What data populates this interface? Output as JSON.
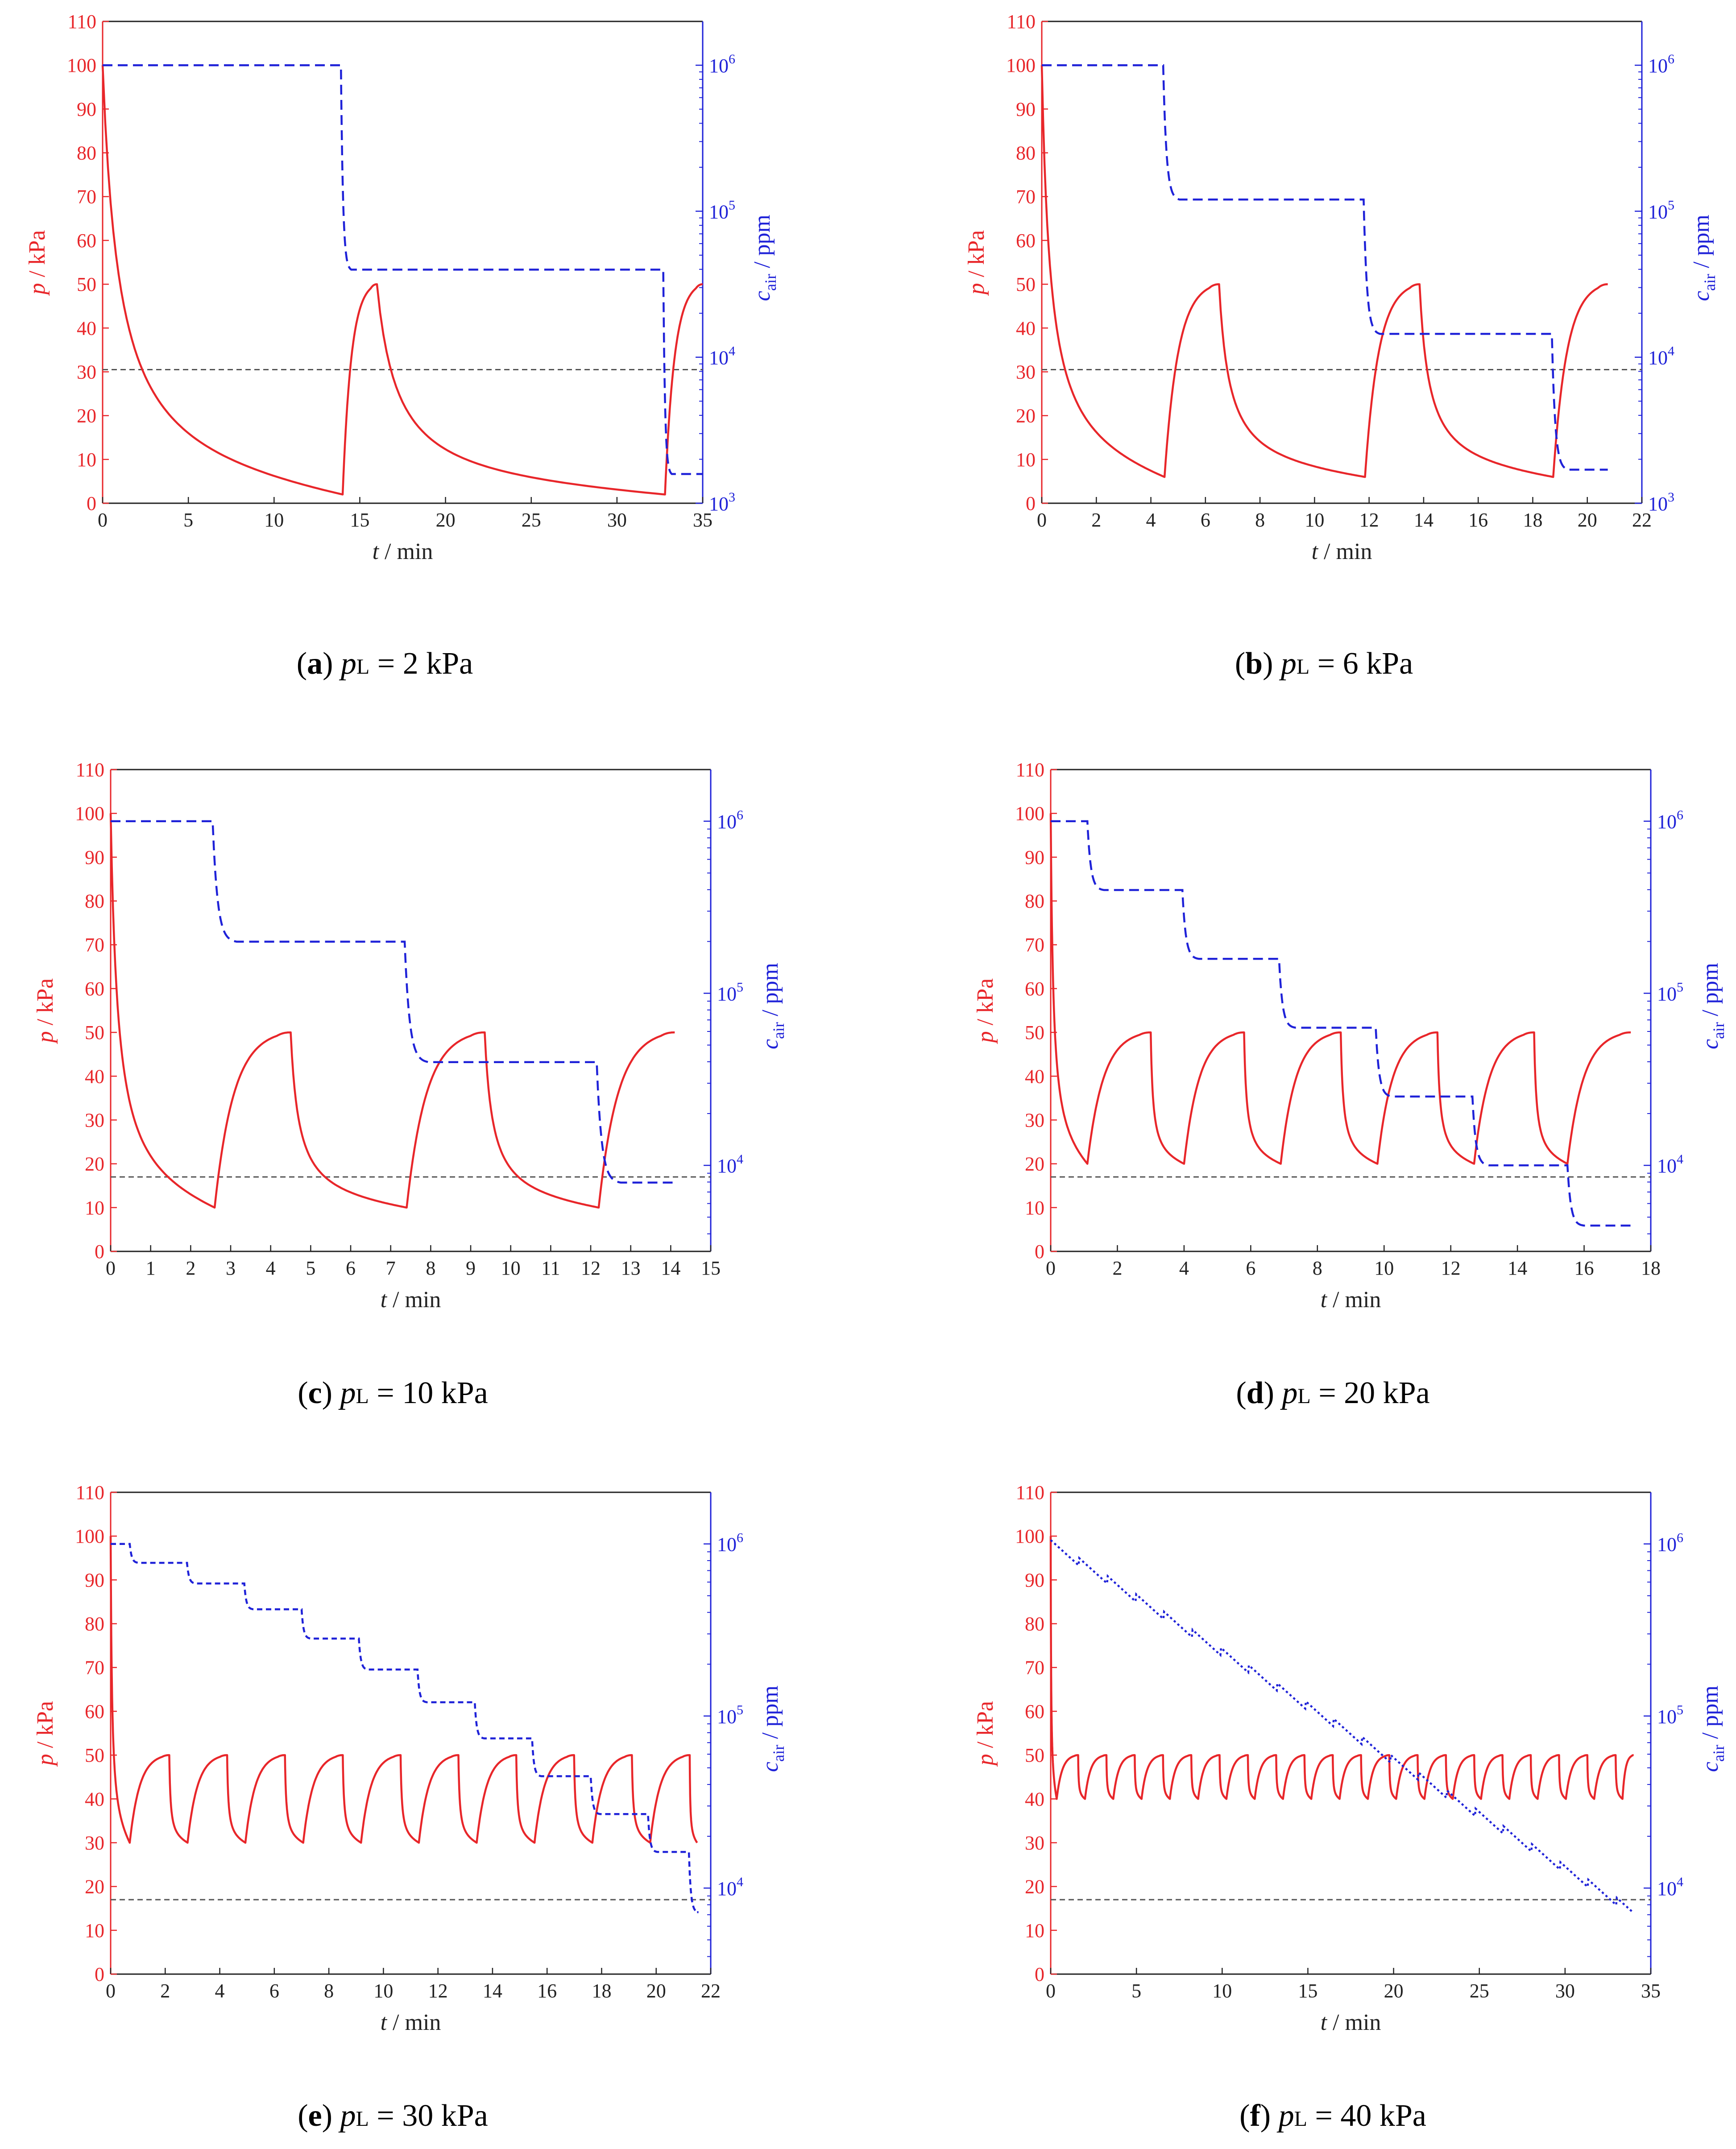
{
  "figure": {
    "colors": {
      "pressure": "#e8262a",
      "concentration": "#1f22d8",
      "threshold": "#555555",
      "axis": "#222222"
    },
    "axis_text": {
      "left_title_main": "p",
      "left_title_unit": " / kPa",
      "right_title_main": "c",
      "right_title_sub": "air",
      "right_title_unit": " / ppm",
      "x_title_main": "t",
      "x_title_unit": " / min",
      "right_tick_base": "10"
    }
  },
  "chart_data": [
    {
      "panel": "a",
      "caption_letter": "a",
      "caption_var": "p",
      "caption_sub": "L",
      "caption_rest": " = 2 kPa",
      "type": "line",
      "xlabel": "t / min",
      "ylabel": "p / kPa",
      "y2label": "c_air / ppm",
      "xlim": [
        0,
        35
      ],
      "ylim": [
        0,
        110
      ],
      "y2lim_log10": [
        3,
        6.3
      ],
      "xticks": [
        0,
        5,
        10,
        15,
        20,
        25,
        30,
        35
      ],
      "yticks": [
        0,
        10,
        20,
        30,
        40,
        50,
        60,
        70,
        80,
        90,
        100,
        110
      ],
      "y2ticks": [
        3,
        4,
        5,
        6
      ],
      "threshold_p": 30.5,
      "series": [
        {
          "name": "p",
          "axis": "left",
          "style": "solid",
          "segments": [
            {
              "kind": "evac",
              "t0": 0,
              "t1": 14,
              "p0": 100,
              "p1": 2
            },
            {
              "kind": "rise",
              "t0": 14,
              "t1": 16,
              "p0": 2,
              "p1": 50
            },
            {
              "kind": "evac",
              "t0": 16,
              "t1": 32.8,
              "p0": 50,
              "p1": 2
            },
            {
              "kind": "rise",
              "t0": 32.8,
              "t1": 35,
              "p0": 2,
              "p1": 50
            }
          ]
        },
        {
          "name": "c_air",
          "axis": "right",
          "style": "dashed",
          "start_t": 0,
          "start_log": 6,
          "end_t": 35,
          "steps": [
            {
              "t": 13.9,
              "log": 4.6,
              "w": 0.6
            },
            {
              "t": 32.7,
              "log": 3.2,
              "w": 0.5
            }
          ]
        }
      ]
    },
    {
      "panel": "b",
      "caption_letter": "b",
      "caption_var": "p",
      "caption_sub": "L",
      "caption_rest": " = 6 kPa",
      "type": "line",
      "xlabel": "t / min",
      "ylabel": "p / kPa",
      "y2label": "c_air / ppm",
      "xlim": [
        0,
        22
      ],
      "ylim": [
        0,
        110
      ],
      "y2lim_log10": [
        3,
        6.3
      ],
      "xticks": [
        0,
        2,
        4,
        6,
        8,
        10,
        12,
        14,
        16,
        18,
        20,
        22
      ],
      "yticks": [
        0,
        10,
        20,
        30,
        40,
        50,
        60,
        70,
        80,
        90,
        100,
        110
      ],
      "y2ticks": [
        3,
        4,
        5,
        6
      ],
      "threshold_p": 30.5,
      "series": [
        {
          "name": "p",
          "axis": "left",
          "style": "solid",
          "segments": [
            {
              "kind": "evac",
              "t0": 0,
              "t1": 4.5,
              "p0": 100,
              "p1": 6
            },
            {
              "kind": "rise",
              "t0": 4.5,
              "t1": 6.5,
              "p0": 6,
              "p1": 50
            },
            {
              "kind": "evac",
              "t0": 6.5,
              "t1": 11.85,
              "p0": 50,
              "p1": 6
            },
            {
              "kind": "rise",
              "t0": 11.85,
              "t1": 13.85,
              "p0": 6,
              "p1": 50
            },
            {
              "kind": "evac",
              "t0": 13.85,
              "t1": 18.75,
              "p0": 50,
              "p1": 6
            },
            {
              "kind": "rise",
              "t0": 18.75,
              "t1": 20.75,
              "p0": 6,
              "p1": 50
            }
          ]
        },
        {
          "name": "c_air",
          "axis": "right",
          "style": "dashed",
          "start_t": 0,
          "start_log": 6,
          "end_t": 20.75,
          "steps": [
            {
              "t": 4.45,
              "log": 5.08,
              "w": 0.6
            },
            {
              "t": 11.8,
              "log": 4.16,
              "w": 0.6
            },
            {
              "t": 18.7,
              "log": 3.23,
              "w": 0.6
            }
          ]
        }
      ]
    },
    {
      "panel": "c",
      "caption_letter": "c",
      "caption_var": "p",
      "caption_sub": "L",
      "caption_rest": " = 10 kPa",
      "type": "line",
      "xlabel": "t / min",
      "ylabel": "p / kPa",
      "y2label": "c_air / ppm",
      "xlim": [
        0,
        15
      ],
      "ylim": [
        0,
        110
      ],
      "y2lim_log10": [
        3.5,
        6.3
      ],
      "xticks": [
        0,
        1,
        2,
        3,
        4,
        5,
        6,
        7,
        8,
        9,
        10,
        11,
        12,
        13,
        14,
        15
      ],
      "yticks": [
        0,
        10,
        20,
        30,
        40,
        50,
        60,
        70,
        80,
        90,
        100,
        110
      ],
      "y2ticks": [
        4,
        5,
        6
      ],
      "threshold_p": 17,
      "series": [
        {
          "name": "p",
          "axis": "left",
          "style": "solid",
          "segments": [
            {
              "kind": "evac",
              "t0": 0,
              "t1": 2.6,
              "p0": 100,
              "p1": 10
            },
            {
              "kind": "rise",
              "t0": 2.6,
              "t1": 4.5,
              "p0": 10,
              "p1": 50
            },
            {
              "kind": "evac",
              "t0": 4.5,
              "t1": 7.4,
              "p0": 50,
              "p1": 10
            },
            {
              "kind": "rise",
              "t0": 7.4,
              "t1": 9.35,
              "p0": 10,
              "p1": 50
            },
            {
              "kind": "evac",
              "t0": 9.35,
              "t1": 12.2,
              "p0": 50,
              "p1": 10
            },
            {
              "kind": "rise",
              "t0": 12.2,
              "t1": 14.1,
              "p0": 10,
              "p1": 50
            }
          ]
        },
        {
          "name": "c_air",
          "axis": "right",
          "style": "dashed",
          "start_t": 0,
          "start_log": 6,
          "end_t": 14.1,
          "steps": [
            {
              "t": 2.55,
              "log": 5.3,
              "w": 0.6
            },
            {
              "t": 7.35,
              "log": 4.6,
              "w": 0.6
            },
            {
              "t": 12.15,
              "log": 3.9,
              "w": 0.6
            }
          ]
        }
      ]
    },
    {
      "panel": "d",
      "caption_letter": "d",
      "caption_var": "p",
      "caption_sub": "L",
      "caption_rest": " = 20 kPa",
      "type": "line",
      "xlabel": "t / min",
      "ylabel": "p / kPa",
      "y2label": "c_air / ppm",
      "xlim": [
        0,
        18
      ],
      "ylim": [
        0,
        110
      ],
      "y2lim_log10": [
        3.5,
        6.3
      ],
      "xticks": [
        0,
        2,
        4,
        6,
        8,
        10,
        12,
        14,
        16,
        18
      ],
      "yticks": [
        0,
        10,
        20,
        30,
        40,
        50,
        60,
        70,
        80,
        90,
        100,
        110
      ],
      "y2ticks": [
        4,
        5,
        6
      ],
      "threshold_p": 17,
      "series": [
        {
          "name": "p",
          "axis": "left",
          "style": "solid",
          "segments": [
            {
              "kind": "evac",
              "t0": 0,
              "t1": 1.1,
              "p0": 100,
              "p1": 20
            },
            {
              "kind": "rise",
              "t0": 1.1,
              "t1": 3.0,
              "p0": 20,
              "p1": 50
            },
            {
              "kind": "evac",
              "t0": 3.0,
              "t1": 4.0,
              "p0": 50,
              "p1": 20
            },
            {
              "kind": "rise",
              "t0": 4.0,
              "t1": 5.8,
              "p0": 20,
              "p1": 50
            },
            {
              "kind": "evac",
              "t0": 5.8,
              "t1": 6.9,
              "p0": 50,
              "p1": 20
            },
            {
              "kind": "rise",
              "t0": 6.9,
              "t1": 8.7,
              "p0": 20,
              "p1": 50
            },
            {
              "kind": "evac",
              "t0": 8.7,
              "t1": 9.8,
              "p0": 50,
              "p1": 20
            },
            {
              "kind": "rise",
              "t0": 9.8,
              "t1": 11.6,
              "p0": 20,
              "p1": 50
            },
            {
              "kind": "evac",
              "t0": 11.6,
              "t1": 12.7,
              "p0": 50,
              "p1": 20
            },
            {
              "kind": "rise",
              "t0": 12.7,
              "t1": 14.5,
              "p0": 20,
              "p1": 50
            },
            {
              "kind": "evac",
              "t0": 14.5,
              "t1": 15.5,
              "p0": 50,
              "p1": 20
            },
            {
              "kind": "rise",
              "t0": 15.5,
              "t1": 17.4,
              "p0": 20,
              "p1": 50
            }
          ]
        },
        {
          "name": "c_air",
          "axis": "right",
          "style": "dashed",
          "start_t": 0,
          "start_log": 6,
          "end_t": 17.4,
          "steps": [
            {
              "t": 1.1,
              "log": 5.6,
              "w": 0.5
            },
            {
              "t": 3.95,
              "log": 5.2,
              "w": 0.5
            },
            {
              "t": 6.85,
              "log": 4.8,
              "w": 0.5
            },
            {
              "t": 9.75,
              "log": 4.4,
              "w": 0.5
            },
            {
              "t": 12.65,
              "log": 4.0,
              "w": 0.5
            },
            {
              "t": 15.5,
              "log": 3.65,
              "w": 0.5
            }
          ]
        }
      ]
    },
    {
      "panel": "e",
      "caption_letter": "e",
      "caption_var": "p",
      "caption_sub": "L",
      "caption_rest": " = 30 kPa",
      "type": "line",
      "xlabel": "t / min",
      "ylabel": "p / kPa",
      "y2label": "c_air / ppm",
      "xlim": [
        0,
        22
      ],
      "ylim": [
        0,
        110
      ],
      "y2lim_log10": [
        3.5,
        6.3
      ],
      "xticks": [
        0,
        2,
        4,
        6,
        8,
        10,
        12,
        14,
        16,
        18,
        20,
        22
      ],
      "yticks": [
        0,
        10,
        20,
        30,
        40,
        50,
        60,
        70,
        80,
        90,
        100,
        110
      ],
      "y2ticks": [
        4,
        5,
        6
      ],
      "threshold_p": 17,
      "series": [
        {
          "name": "p",
          "axis": "left",
          "style": "solid",
          "cycles": {
            "first_evac": {
              "t0": 0,
              "t1": 0.7,
              "p0": 100,
              "p1": 30
            },
            "rise_dur": 1.45,
            "evac_dur": 0.67,
            "low": 30,
            "high": 50,
            "end_t": 21.5
          }
        },
        {
          "name": "c_air",
          "axis": "right",
          "style": "short-dashed",
          "start_t": 0,
          "start_log": 6,
          "end_t": 21.5,
          "steps": [
            {
              "t": 0.7,
              "log": 5.89,
              "w": 0.35
            },
            {
              "t": 2.8,
              "log": 5.77,
              "w": 0.35
            },
            {
              "t": 4.9,
              "log": 5.62,
              "w": 0.35
            },
            {
              "t": 7.0,
              "log": 5.45,
              "w": 0.35
            },
            {
              "t": 9.1,
              "log": 5.27,
              "w": 0.35
            },
            {
              "t": 11.25,
              "log": 5.08,
              "w": 0.35
            },
            {
              "t": 13.35,
              "log": 4.87,
              "w": 0.35
            },
            {
              "t": 15.45,
              "log": 4.65,
              "w": 0.35
            },
            {
              "t": 17.6,
              "log": 4.43,
              "w": 0.35
            },
            {
              "t": 19.7,
              "log": 4.21,
              "w": 0.35
            },
            {
              "t": 21.2,
              "log": 3.86,
              "w": 0.35
            }
          ]
        }
      ]
    },
    {
      "panel": "f",
      "caption_letter": "f",
      "caption_var": "p",
      "caption_sub": "L",
      "caption_rest": " = 40 kPa",
      "type": "line",
      "xlabel": "t / min",
      "ylabel": "p / kPa",
      "y2label": "c_air / ppm",
      "xlim": [
        0,
        35
      ],
      "ylim": [
        0,
        110
      ],
      "y2lim_log10": [
        3.5,
        6.3
      ],
      "xticks": [
        0,
        5,
        10,
        15,
        20,
        25,
        30,
        35
      ],
      "yticks": [
        0,
        10,
        20,
        30,
        40,
        50,
        60,
        70,
        80,
        90,
        100,
        110
      ],
      "y2ticks": [
        4,
        5,
        6
      ],
      "threshold_p": 17,
      "series": [
        {
          "name": "p",
          "axis": "left",
          "style": "solid",
          "cycles": {
            "first_evac": {
              "t0": 0,
              "t1": 0.35,
              "p0": 100,
              "p1": 40
            },
            "rise_dur": 1.25,
            "evac_dur": 0.4,
            "low": 40,
            "high": 50,
            "end_t": 34
          }
        },
        {
          "name": "c_air",
          "axis": "right",
          "style": "dotted",
          "start_t": 0,
          "start_log": 6,
          "end_t": 34,
          "linear_to_log": 3.86,
          "ripple": 0.045,
          "ripple_period": 1.65
        }
      ]
    }
  ]
}
